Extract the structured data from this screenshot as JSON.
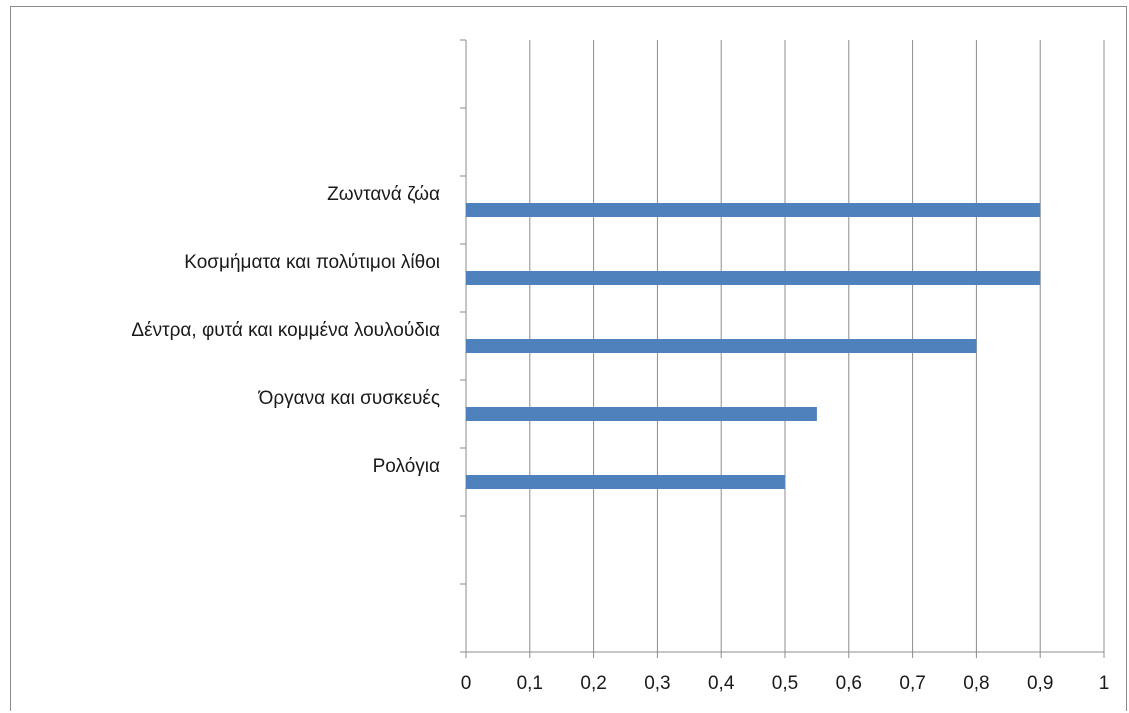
{
  "chart_data": {
    "type": "bar",
    "orientation": "horizontal",
    "categories": [
      "Ζωντανά ζώα",
      "Κοσμήματα και πολύτιμοι λίθοι",
      "Δέντρα, φυτά και κομμένα λουλούδια",
      "Όργανα και συσκευές",
      "Ρολόγια"
    ],
    "values": [
      0.9,
      0.9,
      0.8,
      0.55,
      0.5
    ],
    "category_slots": 9,
    "category_slot_index": [
      2,
      3,
      4,
      5,
      6
    ],
    "xlim": [
      0,
      1
    ],
    "x_ticks": [
      0,
      0.1,
      0.2,
      0.3,
      0.4,
      0.5,
      0.6,
      0.7,
      0.8,
      0.9,
      1
    ],
    "x_tick_labels": [
      "0",
      "0,1",
      "0,2",
      "0,3",
      "0,4",
      "0,5",
      "0,6",
      "0,7",
      "0,8",
      "0,9",
      "1"
    ],
    "vertical_grid": true,
    "legend": "none",
    "bar_color": "#4f81bd",
    "grid_color": "#8c8c8c"
  }
}
